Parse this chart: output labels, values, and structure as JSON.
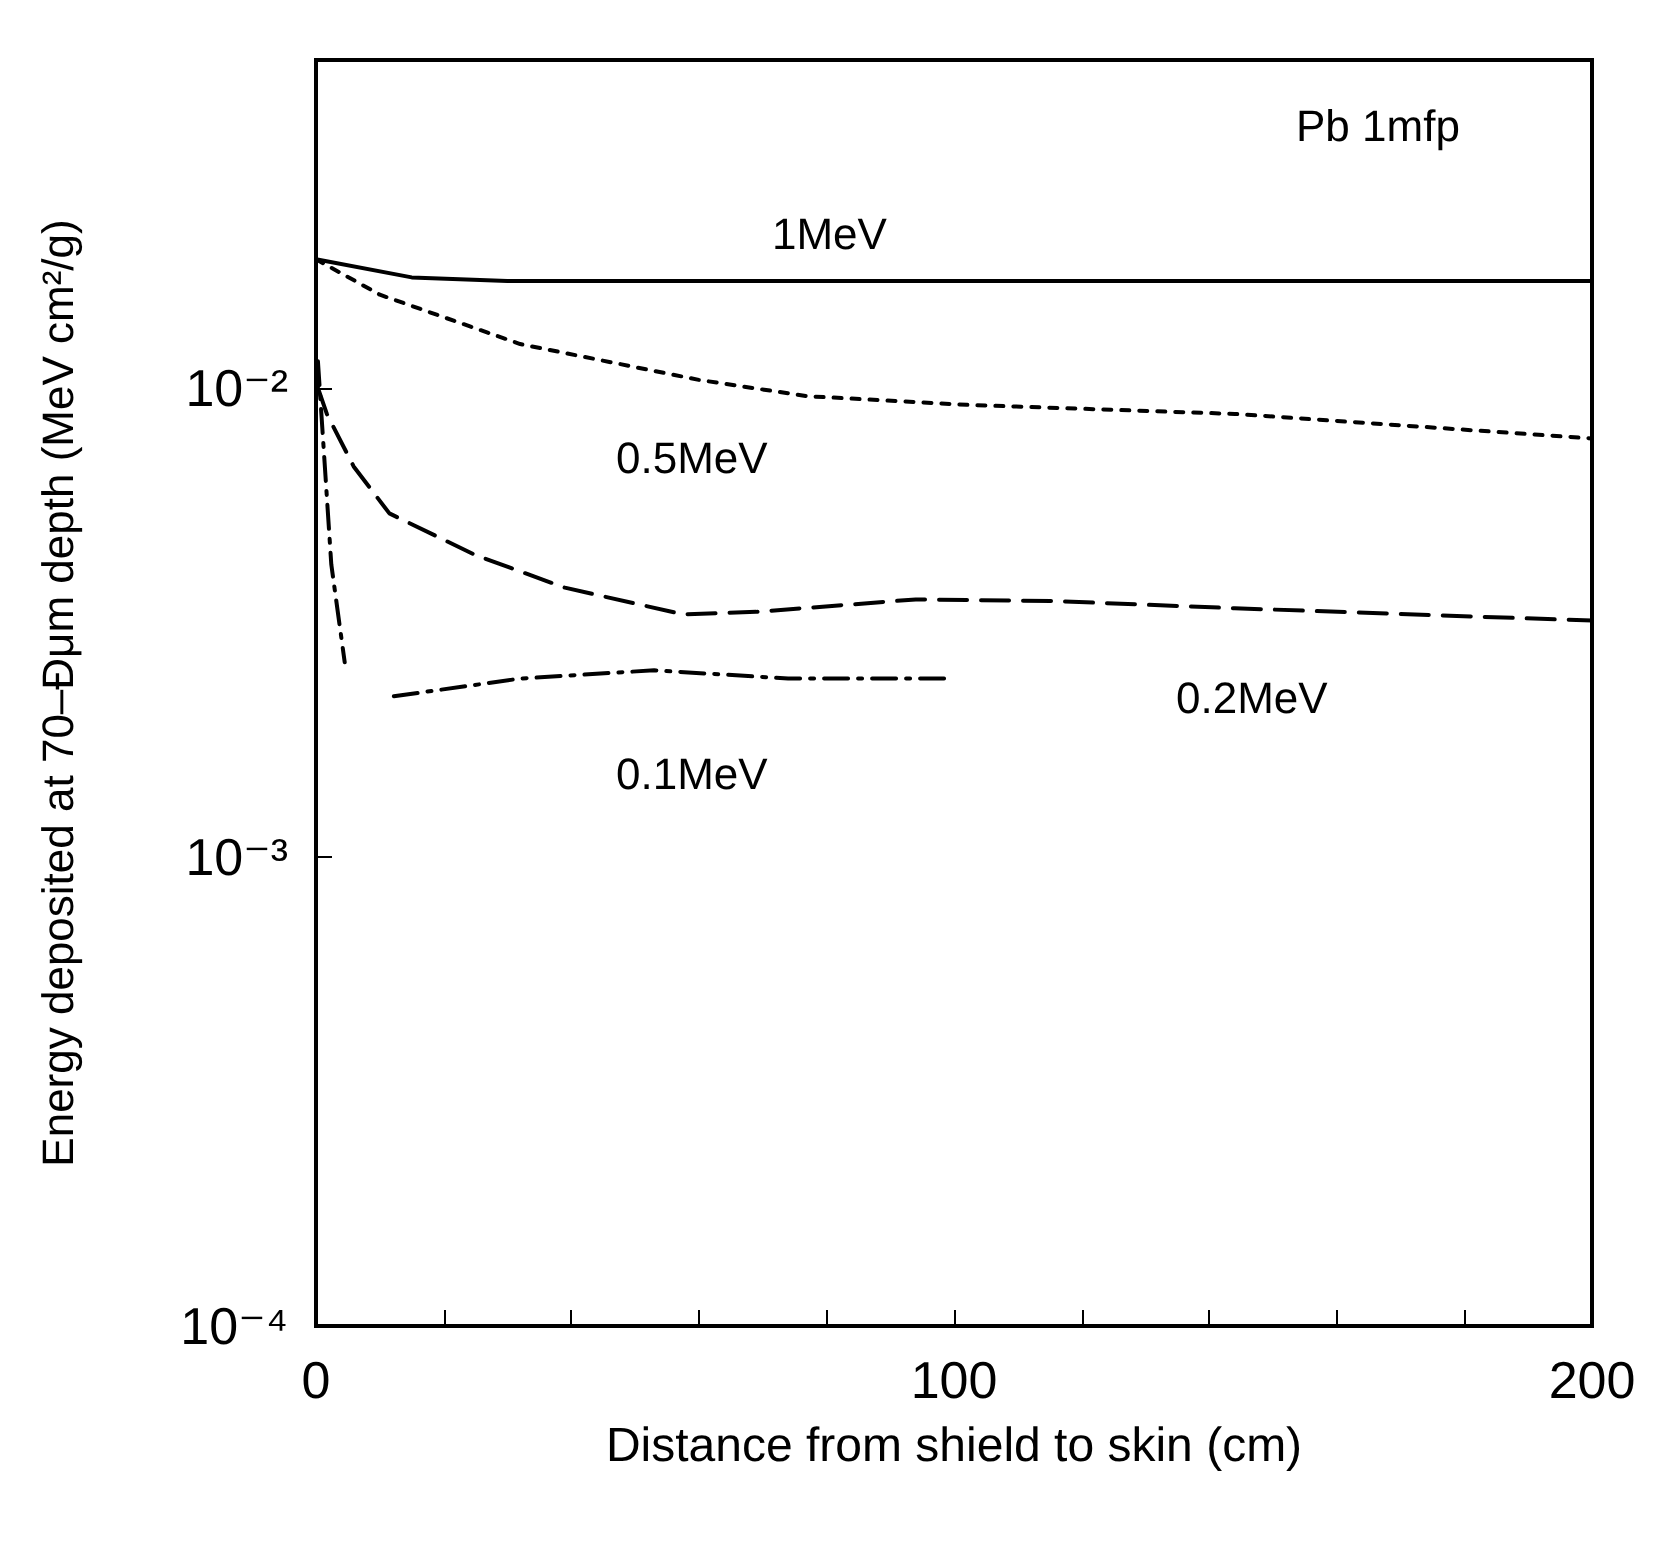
{
  "chart_data": {
    "type": "line",
    "xlabel": "Distance from shield to skin (cm)",
    "ylabel": "Energy deposited at 70–Đμm depth (MeV cm²/g)",
    "log": "y",
    "grid": false,
    "marker": "none",
    "xlim": [
      0,
      200
    ],
    "xticks": [
      0,
      {
        "value": 20,
        "label": null
      },
      {
        "value": 40,
        "label": null
      },
      {
        "value": 60,
        "label": null
      },
      {
        "value": 80,
        "label": null
      },
      100,
      {
        "value": 120,
        "label": null
      },
      {
        "value": 140,
        "label": null
      },
      {
        "value": 160,
        "label": null
      },
      {
        "value": 180,
        "label": null
      },
      200
    ],
    "ylim": [
      0.0001,
      0.05
    ],
    "yticks": [
      {
        "value": 0.0001,
        "label": "10⁻⁴"
      },
      {
        "value": 0.001,
        "label": "10⁻³"
      },
      {
        "value": 0.01,
        "label": "10⁻²"
      }
    ],
    "series": [
      {
        "color": "#000000",
        "line_style": "solid",
        "x": [
          0,
          15,
          30,
          100,
          200
        ],
        "values": [
          0.0188,
          0.0172,
          0.0169,
          0.0169,
          0.0169
        ]
      },
      {
        "color": "#000000",
        "line_style": "dotted",
        "x": [
          0,
          10,
          32,
          60,
          77,
          102,
          144,
          200
        ],
        "values": [
          0.0188,
          0.0158,
          0.0124,
          0.0104,
          0.0096,
          0.0092,
          0.0088,
          0.0078
        ]
      },
      {
        "color": "#000000",
        "line_style": "dashed",
        "x": [
          0.3,
          1.7,
          5.9,
          11.5,
          25,
          39,
          57.5,
          69,
          94,
          116,
          144,
          200
        ],
        "values": [
          0.01,
          0.0088,
          0.0068,
          0.0054,
          0.0044,
          0.00375,
          0.00329,
          0.00333,
          0.00354,
          0.00351,
          0.00339,
          0.00319
        ]
      },
      {
        "color": "#000000",
        "line_style": "dashdot",
        "x": [
          0.3,
          2.4,
          4.5,
          8,
          12.2,
          32,
          53,
          74,
          99.4
        ],
        "values": [
          0.0114,
          0.0042,
          0.0026,
          null,
          0.0022,
          0.0024,
          0.0025,
          0.0024,
          0.0024
        ]
      }
    ],
    "annotations": [
      "Pb 1mfp",
      "1MeV",
      "0.5MeV",
      "0.2MeV",
      "0.1MeV"
    ]
  }
}
